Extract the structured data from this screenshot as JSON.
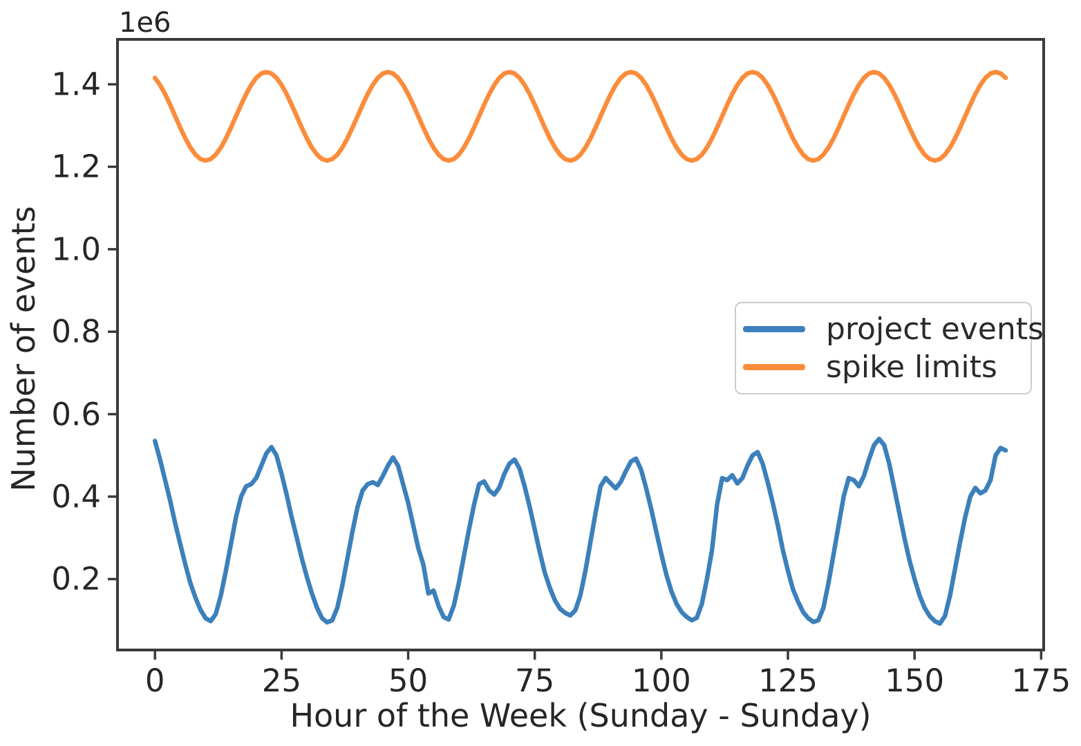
{
  "figure": {
    "background_color": "#ffffff",
    "text_color": "#262626",
    "axis_color": "#3a3a3a",
    "offset_label": "1e6",
    "xlabel": "Hour of the Week (Sunday - Sunday)",
    "ylabel": "Number of events",
    "legend": {
      "entries": [
        {
          "label": "project events",
          "color": "#3c80bb"
        },
        {
          "label": "spike limits",
          "color": "#fb8c3b"
        }
      ]
    }
  },
  "chart_data": {
    "type": "line",
    "title": "",
    "xlabel": "Hour of the Week (Sunday - Sunday)",
    "ylabel": "Number of events",
    "y_offset_text": "1e6",
    "x_unit": "hour",
    "xlim_hours": [
      -7.4,
      175.5
    ],
    "ylim_millions": [
      0.028,
      1.509
    ],
    "x_ticks": [
      0,
      25,
      50,
      75,
      100,
      125,
      150,
      175
    ],
    "y_ticks_millions": [
      0.2,
      0.4,
      0.6,
      0.8,
      1.0,
      1.2,
      1.4
    ],
    "grid": false,
    "legend_position": "center right",
    "series": [
      {
        "name": "project events",
        "color": "#3c80bb",
        "x_start_hour": 0,
        "x_step_hours": 1,
        "values_millions": [
          0.535,
          0.49,
          0.44,
          0.39,
          0.335,
          0.285,
          0.235,
          0.19,
          0.155,
          0.125,
          0.105,
          0.098,
          0.115,
          0.16,
          0.22,
          0.285,
          0.35,
          0.4,
          0.425,
          0.43,
          0.445,
          0.475,
          0.505,
          0.52,
          0.5,
          0.455,
          0.405,
          0.35,
          0.3,
          0.25,
          0.205,
          0.165,
          0.13,
          0.105,
          0.095,
          0.1,
          0.13,
          0.185,
          0.25,
          0.315,
          0.375,
          0.415,
          0.43,
          0.435,
          0.428,
          0.45,
          0.475,
          0.495,
          0.475,
          0.43,
          0.385,
          0.33,
          0.275,
          0.235,
          0.165,
          0.172,
          0.135,
          0.108,
          0.102,
          0.135,
          0.19,
          0.255,
          0.32,
          0.38,
          0.43,
          0.437,
          0.415,
          0.405,
          0.422,
          0.455,
          0.48,
          0.49,
          0.468,
          0.425,
          0.375,
          0.32,
          0.265,
          0.215,
          0.178,
          0.148,
          0.128,
          0.118,
          0.112,
          0.124,
          0.16,
          0.22,
          0.29,
          0.36,
          0.425,
          0.445,
          0.432,
          0.42,
          0.436,
          0.462,
          0.485,
          0.492,
          0.465,
          0.42,
          0.37,
          0.315,
          0.26,
          0.21,
          0.17,
          0.14,
          0.12,
          0.108,
          0.1,
          0.106,
          0.14,
          0.2,
          0.27,
          0.38,
          0.445,
          0.44,
          0.452,
          0.432,
          0.445,
          0.475,
          0.5,
          0.508,
          0.48,
          0.435,
          0.385,
          0.33,
          0.27,
          0.22,
          0.175,
          0.145,
          0.12,
          0.105,
          0.096,
          0.1,
          0.13,
          0.19,
          0.26,
          0.33,
          0.4,
          0.445,
          0.44,
          0.425,
          0.45,
          0.49,
          0.525,
          0.54,
          0.525,
          0.48,
          0.42,
          0.36,
          0.3,
          0.245,
          0.2,
          0.16,
          0.13,
          0.11,
          0.098,
          0.092,
          0.11,
          0.16,
          0.225,
          0.29,
          0.35,
          0.4,
          0.421,
          0.408,
          0.415,
          0.44,
          0.5,
          0.518,
          0.512
        ]
      },
      {
        "name": "spike limits",
        "color": "#fb8c3b",
        "x_start_hour": 0,
        "x_step_hours": 1,
        "values_millions": [
          1.4156,
          1.3985,
          1.3763,
          1.3503,
          1.3225,
          1.2947,
          1.2688,
          1.2465,
          1.2294,
          1.2187,
          1.215,
          1.2187,
          1.2294,
          1.2465,
          1.2688,
          1.2947,
          1.3225,
          1.3503,
          1.3763,
          1.3985,
          1.4156,
          1.4263,
          1.43,
          1.4263,
          1.4156,
          1.3985,
          1.3763,
          1.3503,
          1.3225,
          1.2947,
          1.2688,
          1.2465,
          1.2294,
          1.2187,
          1.215,
          1.2187,
          1.2294,
          1.2465,
          1.2688,
          1.2947,
          1.3225,
          1.3503,
          1.3763,
          1.3985,
          1.4156,
          1.4263,
          1.43,
          1.4263,
          1.4156,
          1.3985,
          1.3763,
          1.3503,
          1.3225,
          1.2947,
          1.2688,
          1.2465,
          1.2294,
          1.2187,
          1.215,
          1.2187,
          1.2294,
          1.2465,
          1.2688,
          1.2947,
          1.3225,
          1.3503,
          1.3763,
          1.3985,
          1.4156,
          1.4263,
          1.43,
          1.4263,
          1.4156,
          1.3985,
          1.3763,
          1.3503,
          1.3225,
          1.2947,
          1.2688,
          1.2465,
          1.2294,
          1.2187,
          1.215,
          1.2187,
          1.2294,
          1.2465,
          1.2688,
          1.2947,
          1.3225,
          1.3503,
          1.3763,
          1.3985,
          1.4156,
          1.4263,
          1.43,
          1.4263,
          1.4156,
          1.3985,
          1.3763,
          1.3503,
          1.3225,
          1.2947,
          1.2688,
          1.2465,
          1.2294,
          1.2187,
          1.215,
          1.2187,
          1.2294,
          1.2465,
          1.2688,
          1.2947,
          1.3225,
          1.3503,
          1.3763,
          1.3985,
          1.4156,
          1.4263,
          1.43,
          1.4263,
          1.4156,
          1.3985,
          1.3763,
          1.3503,
          1.3225,
          1.2947,
          1.2688,
          1.2465,
          1.2294,
          1.2187,
          1.215,
          1.2187,
          1.2294,
          1.2465,
          1.2688,
          1.2947,
          1.3225,
          1.3503,
          1.3763,
          1.3985,
          1.4156,
          1.4263,
          1.43,
          1.4263,
          1.4156,
          1.3985,
          1.3763,
          1.3503,
          1.3225,
          1.2947,
          1.2688,
          1.2465,
          1.2294,
          1.2187,
          1.215,
          1.2187,
          1.2294,
          1.2465,
          1.2688,
          1.2947,
          1.3225,
          1.3503,
          1.3763,
          1.3985,
          1.4156,
          1.4263,
          1.43,
          1.4263,
          1.4156
        ]
      }
    ]
  }
}
